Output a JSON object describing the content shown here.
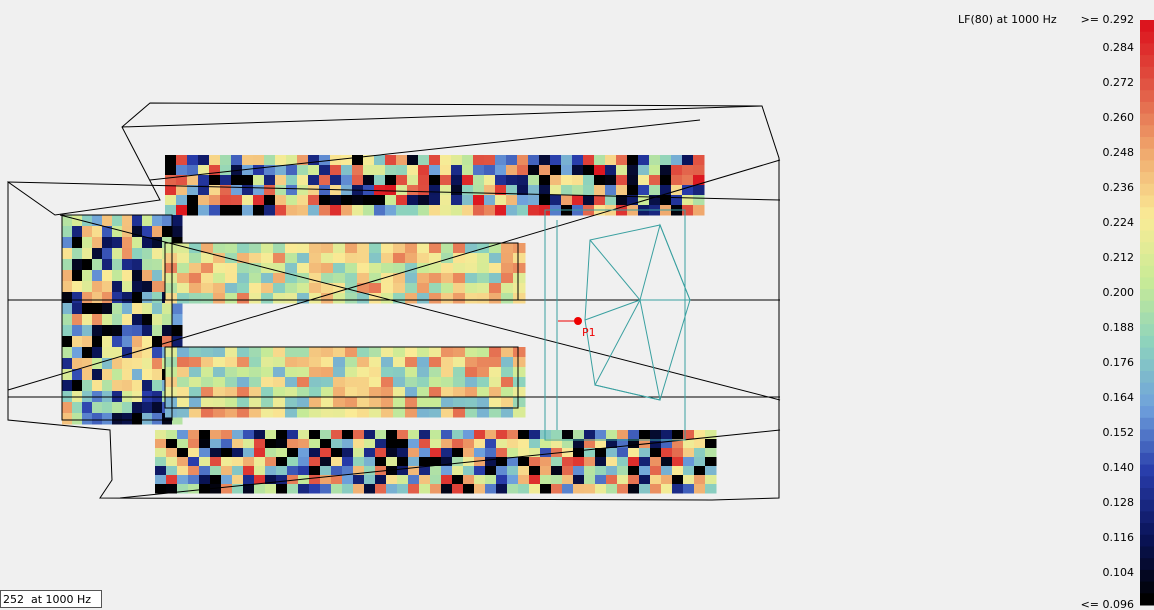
{
  "legend": {
    "title": "LF(80)  at 1000 Hz",
    "max_label": ">= 0.292",
    "labels": [
      "0.284",
      "0.272",
      "0.260",
      "0.248",
      "0.236",
      "0.224",
      "0.212",
      "0.200",
      "0.188",
      "0.176",
      "0.164",
      "0.152",
      "0.140",
      "0.128",
      "0.116",
      "0.104"
    ],
    "min_label": "<= 0.096"
  },
  "receiver": {
    "label": "P1"
  },
  "status": {
    "text": "252  at 1000 Hz"
  }
}
